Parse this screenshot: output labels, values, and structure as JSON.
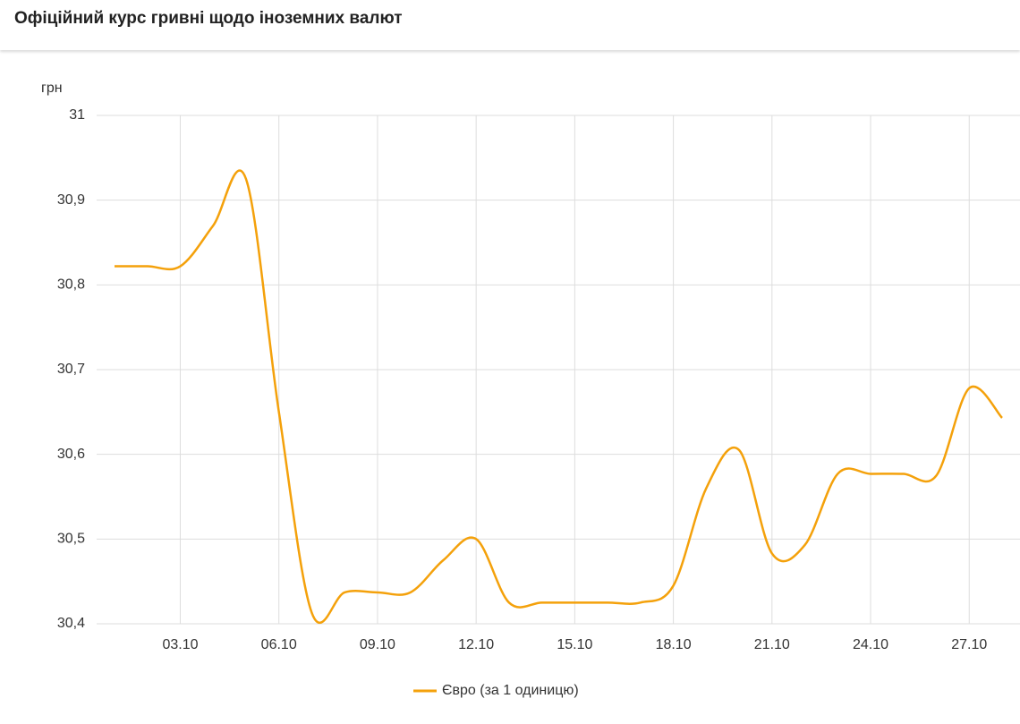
{
  "header": {
    "title": "Офіційний курс гривні щодо іноземних валют"
  },
  "chart_data": {
    "type": "line",
    "y_label": "грн",
    "x": [
      1,
      2,
      3,
      4,
      5,
      6,
      7,
      8,
      9,
      10,
      11,
      12,
      13,
      14,
      15,
      16,
      17,
      18,
      19,
      20,
      21,
      22,
      23,
      24,
      25,
      26,
      27,
      28
    ],
    "series": [
      {
        "name": "Євро (за 1 одиницю)",
        "color": "#f4a10b",
        "values": [
          30.822,
          30.822,
          30.822,
          30.87,
          30.925,
          30.65,
          30.413,
          30.437,
          30.437,
          30.437,
          30.475,
          30.5,
          30.425,
          30.425,
          30.425,
          30.425,
          30.425,
          30.445,
          30.56,
          30.605,
          30.483,
          30.493,
          30.577,
          30.577,
          30.577,
          30.575,
          30.678,
          30.643
        ]
      }
    ],
    "xlim": [
      1,
      28
    ],
    "xticks": [
      {
        "value": 3,
        "label": "03.10"
      },
      {
        "value": 6,
        "label": "06.10"
      },
      {
        "value": 9,
        "label": "09.10"
      },
      {
        "value": 12,
        "label": "12.10"
      },
      {
        "value": 15,
        "label": "15.10"
      },
      {
        "value": 18,
        "label": "18.10"
      },
      {
        "value": 21,
        "label": "21.10"
      },
      {
        "value": 24,
        "label": "24.10"
      },
      {
        "value": 27,
        "label": "27.10"
      }
    ],
    "ylim": [
      30.4,
      31
    ],
    "yticks": [
      {
        "value": 30.4,
        "label": "30,4"
      },
      {
        "value": 30.5,
        "label": "30,5"
      },
      {
        "value": 30.6,
        "label": "30,6"
      },
      {
        "value": 30.7,
        "label": "30,7"
      },
      {
        "value": 30.8,
        "label": "30,8"
      },
      {
        "value": 30.9,
        "label": "30,9"
      },
      31
    ],
    "grid": true,
    "legend": "bottom"
  }
}
